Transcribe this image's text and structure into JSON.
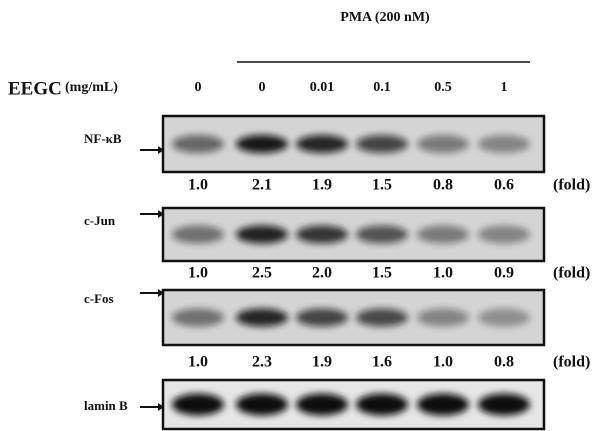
{
  "header": {
    "treatment": "PMA (200 nM)",
    "compound": "EEGC",
    "unit": "(mg/mL)",
    "concentrations": [
      "0",
      "0",
      "0.01",
      "0.1",
      "0.5",
      "1"
    ]
  },
  "blots": [
    {
      "label": "NF-κB",
      "fold": [
        "1.0",
        "2.1",
        "1.9",
        "1.5",
        "0.8",
        "0.6"
      ],
      "fold_unit": "(fold)"
    },
    {
      "label": "c-Jun",
      "fold": [
        "1.0",
        "2.5",
        "2.0",
        "1.5",
        "1.0",
        "0.9"
      ],
      "fold_unit": "(fold)"
    },
    {
      "label": "c-Fos",
      "fold": [
        "1.0",
        "2.3",
        "1.9",
        "1.6",
        "1.0",
        "0.8"
      ],
      "fold_unit": "(fold)"
    },
    {
      "label": "lamin B"
    }
  ]
}
